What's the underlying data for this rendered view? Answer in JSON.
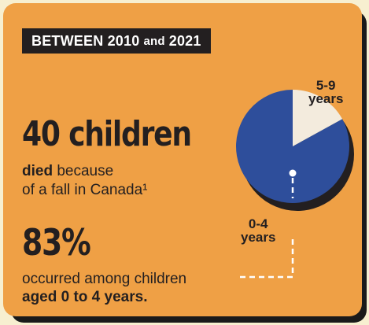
{
  "banner": {
    "part1": "BETWEEN 2010",
    "part2": "and",
    "part3": "2021"
  },
  "stat1": {
    "value": "40 children",
    "line1_bold": "died",
    "line1_rest": " because",
    "line2": "of a fall in Canada¹"
  },
  "stat2": {
    "value": "83%",
    "line1": "occurred among children",
    "line2": "aged 0 to 4 years."
  },
  "colors": {
    "background": "#efa045",
    "slice_0_4": "#2e4e9b",
    "slice_5_9": "#f3ebdd",
    "ink": "#231f20"
  },
  "chart_data": {
    "type": "pie",
    "slices": [
      {
        "label": "5-9 years",
        "line1": "5-9",
        "line2": "years",
        "value": 17
      },
      {
        "label": "0-4 years",
        "line1": "0-4",
        "line2": "years",
        "value": 83
      }
    ]
  }
}
